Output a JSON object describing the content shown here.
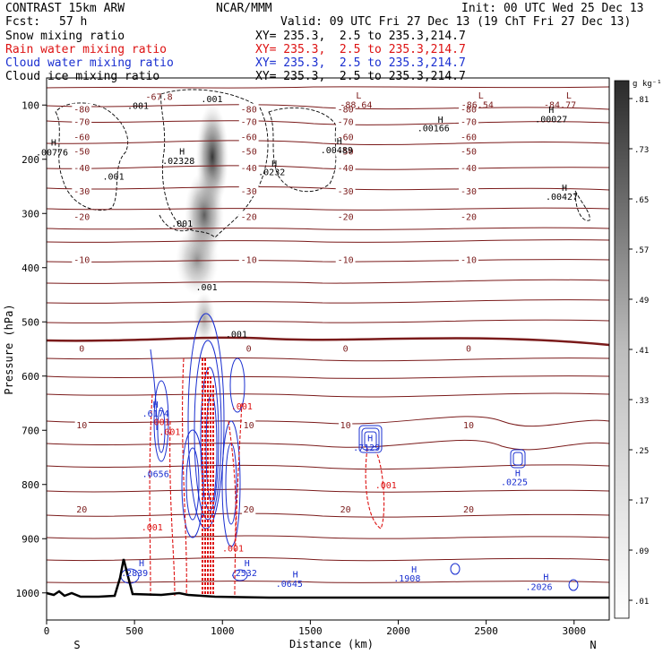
{
  "header": {
    "title": "CONTRAST 15km ARW",
    "org": "NCAR/MMM",
    "init": "Init: 00 UTC Wed 25 Dec 13",
    "fcst_label": "Fcst:",
    "fcst_value": "57 h",
    "valid": "Valid: 09 UTC Fri 27 Dec 13 (19 ChT Fri 27 Dec 13)"
  },
  "fields": [
    {
      "name": "Snow mixing ratio",
      "xy": "XY= 235.3,  2.5 to 235.3,214.7",
      "color": "#000000"
    },
    {
      "name": "Rain water mixing ratio",
      "xy": "XY= 235.3,  2.5 to 235.3,214.7",
      "color": "#dd1111"
    },
    {
      "name": "Cloud water mixing ratio",
      "xy": "XY= 235.3,  2.5 to 235.3,214.7",
      "color": "#1a2fd0"
    },
    {
      "name": "Cloud ice mixing ratio",
      "xy": "XY= 235.3,  2.5 to 235.3,214.7",
      "color": "#000000"
    }
  ],
  "chart_data": {
    "type": "cross-section",
    "xlabel": "Distance (km)",
    "ylabel": "Pressure (hPa)",
    "xlim": [
      0,
      3200
    ],
    "ylim": [
      1050,
      50
    ],
    "x_ticks": [
      0,
      500,
      1000,
      1500,
      2000,
      2500,
      3000
    ],
    "y_ticks": [
      100,
      200,
      300,
      400,
      500,
      600,
      700,
      800,
      900,
      1000
    ],
    "x_end_labels": {
      "left": "S",
      "right": "N"
    },
    "colorbar": {
      "unit": "g kg⁻¹",
      "ticks": [
        ".01",
        ".09",
        ".17",
        ".25",
        ".33",
        ".41",
        ".49",
        ".57",
        ".65",
        ".73",
        ".81"
      ]
    },
    "temperature_contours": [
      {
        "label": "-80",
        "p": 107
      },
      {
        "label": "-70",
        "p": 130
      },
      {
        "label": "-60",
        "p": 158
      },
      {
        "label": "-50",
        "p": 185
      },
      {
        "label": "-40",
        "p": 215
      },
      {
        "label": "-30",
        "p": 258
      },
      {
        "label": "-20",
        "p": 305
      },
      {
        "label": "-10",
        "p": 385
      },
      {
        "label": "0",
        "p": 548
      },
      {
        "label": "10",
        "p": 690
      },
      {
        "label": "20",
        "p": 845
      }
    ],
    "annotations": [
      {
        "text": "-67.8",
        "x": 640,
        "p": 84
      },
      {
        "text": ".001",
        "x": 940,
        "p": 88
      },
      {
        "text": ".001",
        "x": 520,
        "p": 100
      },
      {
        "text": "L",
        "x": 1775,
        "p": 81
      },
      {
        "text": "-88.64",
        "x": 1760,
        "p": 99
      },
      {
        "text": "L",
        "x": 2470,
        "p": 81
      },
      {
        "text": "-86.54",
        "x": 2450,
        "p": 99
      },
      {
        "text": "L",
        "x": 2970,
        "p": 81
      },
      {
        "text": "-84.77",
        "x": 2920,
        "p": 99
      },
      {
        "text": "H",
        "x": 2870,
        "p": 108
      },
      {
        "text": ".00027",
        "x": 2870,
        "p": 125
      },
      {
        "text": "H",
        "x": 2240,
        "p": 126
      },
      {
        "text": ".00166",
        "x": 2200,
        "p": 142
      },
      {
        "text": "H",
        "x": 40,
        "p": 168
      },
      {
        "text": ".00776",
        "x": 30,
        "p": 186
      },
      {
        "text": "H",
        "x": 770,
        "p": 185
      },
      {
        "text": ".02328",
        "x": 750,
        "p": 202
      },
      {
        "text": "H",
        "x": 1665,
        "p": 166
      },
      {
        "text": ".00489",
        "x": 1650,
        "p": 182
      },
      {
        "text": "H",
        "x": 1295,
        "p": 207
      },
      {
        "text": ".0232",
        "x": 1280,
        "p": 223
      },
      {
        "text": ".001",
        "x": 380,
        "p": 231
      },
      {
        "text": "H",
        "x": 2945,
        "p": 252
      },
      {
        "text": ".00427",
        "x": 2930,
        "p": 268
      },
      {
        "text": ".001",
        "x": 770,
        "p": 318
      },
      {
        "text": ".001",
        "x": 910,
        "p": 435
      },
      {
        "text": ".001",
        "x": 1080,
        "p": 522
      },
      {
        "text": "H",
        "x": 620,
        "p": 652
      },
      {
        "text": ".6174",
        "x": 620,
        "p": 668
      },
      {
        "text": ".001",
        "x": 640,
        "p": 684
      },
      {
        "text": ".001",
        "x": 700,
        "p": 702
      },
      {
        "text": ".0656",
        "x": 620,
        "p": 780
      },
      {
        "text": ".001",
        "x": 1110,
        "p": 655
      },
      {
        "text": ".001",
        "x": 600,
        "p": 878
      },
      {
        "text": ".001",
        "x": 1060,
        "p": 917
      },
      {
        "text": "H",
        "x": 1840,
        "p": 714
      },
      {
        "text": ".7129",
        "x": 1820,
        "p": 731
      },
      {
        "text": ".001",
        "x": 1930,
        "p": 800
      },
      {
        "text": "H",
        "x": 2680,
        "p": 778
      },
      {
        "text": ".0225",
        "x": 2660,
        "p": 795
      },
      {
        "text": "H",
        "x": 540,
        "p": 944
      },
      {
        "text": ".2839",
        "x": 500,
        "p": 962
      },
      {
        "text": "H",
        "x": 1140,
        "p": 944
      },
      {
        "text": ".2532",
        "x": 1120,
        "p": 962
      },
      {
        "text": "H",
        "x": 1415,
        "p": 965
      },
      {
        "text": ".0645",
        "x": 1380,
        "p": 982
      },
      {
        "text": "H",
        "x": 2090,
        "p": 956
      },
      {
        "text": ".1908",
        "x": 2050,
        "p": 972
      },
      {
        "text": "H",
        "x": 2840,
        "p": 970
      },
      {
        "text": ".2026",
        "x": 2800,
        "p": 988
      }
    ]
  }
}
